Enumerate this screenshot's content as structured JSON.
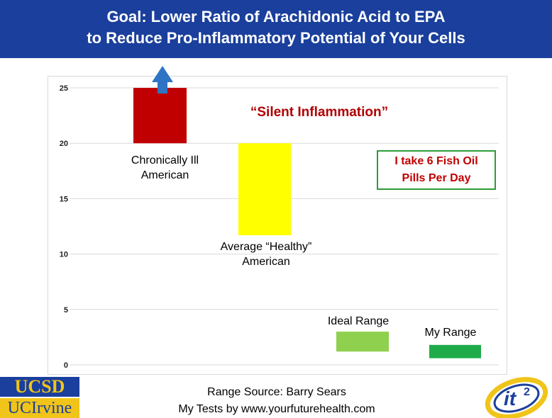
{
  "header": {
    "line1": "Goal: Lower Ratio of Arachidonic Acid to EPA",
    "line2": "to Reduce Pro-Inflammatory Potential of Your Cells"
  },
  "chart_data": {
    "type": "bar",
    "title": "",
    "xlabel": "",
    "ylabel": "",
    "ylim": [
      0,
      25
    ],
    "yticks": [
      0,
      5,
      10,
      15,
      20,
      25
    ],
    "grid": true,
    "bars": [
      {
        "label": "Chronically Ill American",
        "low": 20,
        "high": 25,
        "color": "#c00000"
      },
      {
        "label": "Average “Healthy” American",
        "low": 11.7,
        "high": 20,
        "color": "#ffff00"
      },
      {
        "label": "Ideal Range",
        "low": 1.2,
        "high": 3,
        "color": "#8fd14f"
      },
      {
        "label": "My Range",
        "low": 0.6,
        "high": 1.8,
        "color": "#1fab4a"
      }
    ],
    "annotations": {
      "silent": "“Silent Inflammation”",
      "fish_oil_line1": "I take 6 Fish Oil",
      "fish_oil_line2": "Pills Per Day"
    },
    "colors": {
      "arrow": "#2f74c4",
      "grid": "#d9d9d9"
    }
  },
  "labels": {
    "chronic_line1": "Chronically Ill",
    "chronic_line2": "American",
    "average_line1": "Average “Healthy”",
    "average_line2": "American",
    "ideal": "Ideal Range",
    "mine": "My Range"
  },
  "footer": {
    "source_line1": "Range Source: Barry Sears",
    "source_line2": "My Tests by www.yourfuturehealth.com"
  },
  "logos": {
    "ucsd": "UCSD",
    "uci": "UCIrvine",
    "it2": "it",
    "it2_sup": "2"
  }
}
